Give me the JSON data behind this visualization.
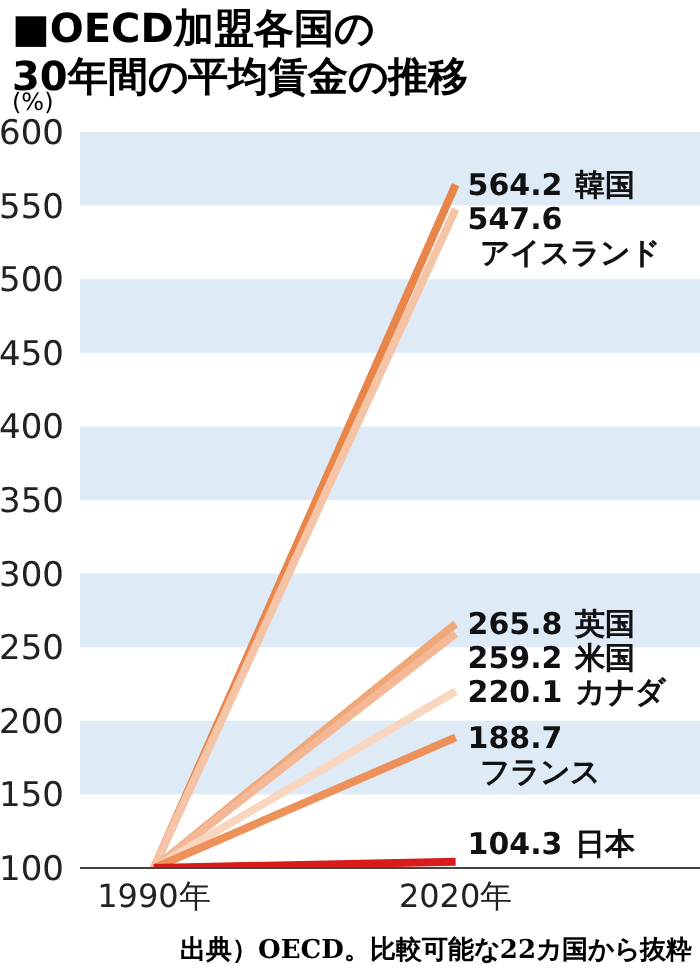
{
  "chart_data": {
    "type": "line",
    "title": "■OECD加盟各国の\n30年間の平均賃金の推移",
    "ylabel": "(%)",
    "categories": [
      "1990年",
      "2020年"
    ],
    "series": [
      {
        "name": "韓国",
        "color": "#e8864a",
        "values": [
          100,
          564.2
        ],
        "value_labels": [
          null,
          "564.2"
        ]
      },
      {
        "name": "アイスランド",
        "color": "#f5c4a6",
        "values": [
          100,
          547.6
        ],
        "value_labels": [
          null,
          "547.6"
        ]
      },
      {
        "name": "英国",
        "color": "#f0a878",
        "values": [
          100,
          265.8
        ],
        "value_labels": [
          null,
          "265.8"
        ]
      },
      {
        "name": "米国",
        "color": "#f4b896",
        "values": [
          100,
          259.2
        ],
        "value_labels": [
          null,
          "259.2"
        ]
      },
      {
        "name": "カナダ",
        "color": "#f8d6c0",
        "values": [
          100,
          220.1
        ],
        "value_labels": [
          null,
          "220.1"
        ]
      },
      {
        "name": "フランス",
        "color": "#ec915a",
        "values": [
          100,
          188.7
        ],
        "value_labels": [
          null,
          "188.7"
        ]
      },
      {
        "name": "日本",
        "color": "#d81c1c",
        "values": [
          100,
          104.3
        ],
        "value_labels": [
          null,
          "104.3"
        ]
      }
    ],
    "ylim": [
      100,
      600
    ],
    "yticks": [
      100,
      150,
      200,
      250,
      300,
      350,
      400,
      450,
      500,
      550,
      600
    ],
    "bands": [
      {
        "axis": "y",
        "from": 150,
        "to": 200,
        "color": "#deebf7"
      },
      {
        "axis": "y",
        "from": 250,
        "to": 300,
        "color": "#deebf7"
      },
      {
        "axis": "y",
        "from": 350,
        "to": 400,
        "color": "#deebf7"
      },
      {
        "axis": "y",
        "from": 450,
        "to": 500,
        "color": "#deebf7"
      },
      {
        "axis": "y",
        "from": 550,
        "to": 600,
        "color": "#deebf7"
      }
    ],
    "marker": "none",
    "grid": false,
    "legend": false,
    "annotations": [
      "出典）OECD。比較可能な22カ国から抜粋"
    ]
  }
}
